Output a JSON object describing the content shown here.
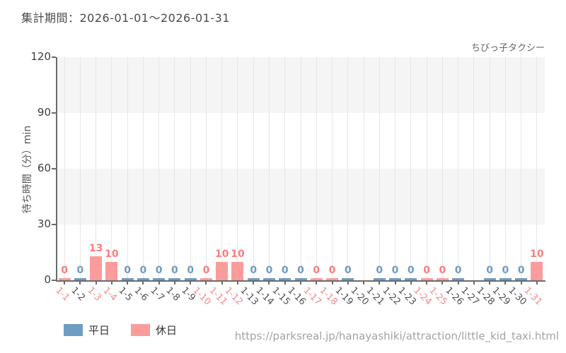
{
  "header": {
    "title": "集計期間：2026-01-01～2026-01-31"
  },
  "chart_data": {
    "type": "bar",
    "attraction_label": "ちびっ子タクシー",
    "ylabel": "待ち時間（分）min",
    "ylim": [
      0,
      120
    ],
    "yticks": [
      0,
      30,
      60,
      90,
      120
    ],
    "grid": true,
    "band_colors": [
      "#f5f5f5",
      "#ffffff"
    ],
    "categories": [
      "1-1",
      "1-2",
      "1-3",
      "1-4",
      "1-5",
      "1-6",
      "1-7",
      "1-8",
      "1-9",
      "1-10",
      "1-11",
      "1-12",
      "1-13",
      "1-14",
      "1-15",
      "1-16",
      "1-17",
      "1-18",
      "1-19",
      "1-20",
      "1-21",
      "1-22",
      "1-23",
      "1-24",
      "1-25",
      "1-26",
      "1-27",
      "1-28",
      "1-29",
      "1-30",
      "1-31"
    ],
    "values": [
      0,
      0,
      13,
      10,
      0,
      0,
      0,
      0,
      0,
      0,
      10,
      10,
      0,
      0,
      0,
      0,
      0,
      0,
      0,
      null,
      0,
      0,
      0,
      0,
      0,
      0,
      null,
      0,
      0,
      0,
      10
    ],
    "day_types": [
      "holiday",
      "weekday",
      "holiday",
      "holiday",
      "weekday",
      "weekday",
      "weekday",
      "weekday",
      "weekday",
      "holiday",
      "holiday",
      "holiday",
      "weekday",
      "weekday",
      "weekday",
      "weekday",
      "holiday",
      "holiday",
      "weekday",
      "weekday",
      "weekday",
      "weekday",
      "weekday",
      "holiday",
      "holiday",
      "weekday",
      "weekday",
      "weekday",
      "weekday",
      "weekday",
      "holiday"
    ],
    "colors": {
      "weekday_bar": "#6f9cc2",
      "holiday_bar": "#fb9c9c",
      "weekday_value_label": "#6f9cc2",
      "holiday_value_label": "#f87e7e",
      "weekday_tick_label": "#525252",
      "holiday_tick_label": "#f98888"
    },
    "legend": [
      {
        "label": "平日",
        "color": "#6f9cc2",
        "type": "weekday"
      },
      {
        "label": "休日",
        "color": "#fb9c9c",
        "type": "holiday"
      }
    ]
  },
  "footer": {
    "url": "https://parksreal.jp/hanayashiki/attraction/little_kid_taxi.html"
  }
}
